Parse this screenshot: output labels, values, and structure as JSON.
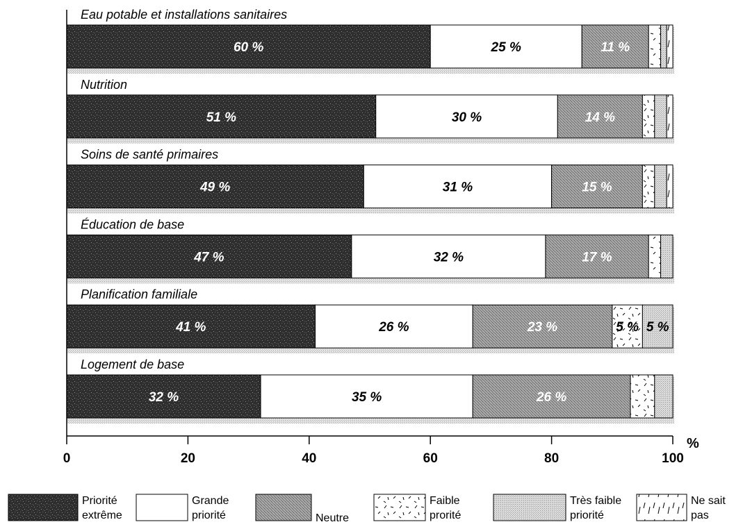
{
  "chart_data": {
    "type": "bar",
    "orientation": "horizontal",
    "stacked": true,
    "unit": "%",
    "xlim": [
      0,
      100
    ],
    "xticks": [
      0,
      20,
      40,
      60,
      80,
      100
    ],
    "categories": [
      "Eau potable et installations sanitaires",
      "Nutrition",
      "Soins de santé primaires",
      "Éducation de base",
      "Planification familiale",
      "Logement de base"
    ],
    "series": [
      {
        "name": "Priorité extrême",
        "legend_lines": [
          "Priorité",
          "extrême"
        ],
        "values": [
          60,
          51,
          49,
          47,
          41,
          32
        ],
        "labels": [
          "60 %",
          "51 %",
          "49 %",
          "47 %",
          "41 %",
          "32 %"
        ],
        "color": "#333333"
      },
      {
        "name": "Grande priorité",
        "legend_lines": [
          "Grande",
          "priorité"
        ],
        "values": [
          25,
          30,
          31,
          32,
          26,
          35
        ],
        "labels": [
          "25 %",
          "30 %",
          "31 %",
          "32 %",
          "26 %",
          "35 %"
        ],
        "color": "#ffffff"
      },
      {
        "name": "Neutre",
        "legend_lines": [
          "Neutre"
        ],
        "values": [
          11,
          14,
          15,
          17,
          23,
          26
        ],
        "labels": [
          "11 %",
          "14 %",
          "15 %",
          "17 %",
          "23 %",
          "26 %"
        ],
        "color": "#8a8a8a"
      },
      {
        "name": "Faible prorité",
        "legend_lines": [
          "Faible",
          "prorité"
        ],
        "values": [
          2,
          2,
          2,
          2,
          5,
          4
        ],
        "labels": [
          "",
          "",
          "",
          "",
          "5 %",
          ""
        ],
        "color": "#ffffff"
      },
      {
        "name": "Très faible priorité",
        "legend_lines": [
          "Très faible",
          "priorité"
        ],
        "values": [
          1,
          2,
          2,
          2,
          5,
          3
        ],
        "labels": [
          "",
          "",
          "",
          "",
          "5 %",
          ""
        ],
        "color": "#d4d4d4"
      },
      {
        "name": "Ne sait pas",
        "legend_lines": [
          "Ne sait",
          "pas"
        ],
        "values": [
          1,
          1,
          1,
          0,
          0,
          0
        ],
        "labels": [
          "",
          "",
          "",
          "",
          "",
          ""
        ],
        "color": "#ffffff"
      }
    ],
    "grid": false,
    "legend_position": "bottom"
  }
}
